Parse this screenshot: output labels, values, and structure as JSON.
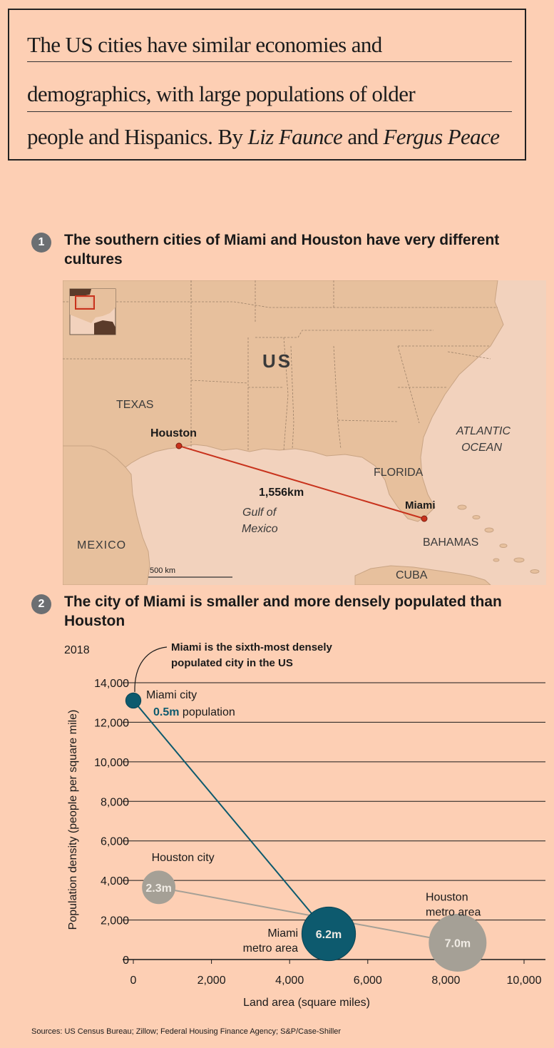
{
  "standfirst": {
    "line1": "The US cities have similar economies and",
    "line2": "demographics, with large populations of older",
    "line3_prefix": "people and Hispanics. By ",
    "author1": "Liz Faunce",
    "line3_mid": " and ",
    "author2": "Fergus Peace"
  },
  "section1": {
    "number": "1",
    "title": "The southern cities of Miami and Houston have very different cultures"
  },
  "map": {
    "labels": {
      "us": "US",
      "texas": "TEXAS",
      "houston": "Houston",
      "atlantic_line1": "ATLANTIC",
      "atlantic_line2": "OCEAN",
      "florida": "FLORIDA",
      "distance": "1,556km",
      "miami": "Miami",
      "gulf_line1": "Gulf of",
      "gulf_line2": "Mexico",
      "mexico": "MEXICO",
      "bahamas": "BAHAMAS",
      "cuba": "CUBA",
      "scale": "500 km"
    },
    "colors": {
      "land": "#e7c09d",
      "sea": "#f2d2bd",
      "route": "#c8321c"
    }
  },
  "section2": {
    "number": "2",
    "title": "The city of Miami is smaller and more densely populated than Houston"
  },
  "chart_data": {
    "type": "scatter",
    "subtitle": "2018",
    "xlabel": "Land area (square miles)",
    "ylabel": "Population density (people per square mile)",
    "xlim": [
      0,
      10000
    ],
    "ylim": [
      0,
      14000
    ],
    "x_ticks": [
      0,
      2000,
      4000,
      6000,
      8000,
      10000
    ],
    "x_tick_labels": [
      "0",
      "2,000",
      "4,000",
      "6,000",
      "8,000",
      "10,000"
    ],
    "y_ticks": [
      0,
      2000,
      4000,
      6000,
      8000,
      10000,
      12000,
      14000
    ],
    "y_tick_labels": [
      "0",
      "2,000",
      "4,000",
      "6,000",
      "8,000",
      "10,000",
      "12,000",
      "14,000"
    ],
    "grid": true,
    "annotation": "Miami is the sixth-most densely populated city in the US",
    "series": [
      {
        "name": "Miami",
        "color": "#0d5a6e",
        "points": [
          {
            "label": "Miami city",
            "x": 0,
            "y": 13100,
            "population": 0.5,
            "value_label": "0.5m",
            "value_suffix": " population"
          },
          {
            "label": "Miami metro area",
            "x": 5000,
            "y": 1300,
            "population": 6.2,
            "value_label": "6.2m"
          }
        ]
      },
      {
        "name": "Houston",
        "color": "#a5a096",
        "points": [
          {
            "label": "Houston city",
            "x": 650,
            "y": 3650,
            "population": 2.3,
            "value_label": "2.3m"
          },
          {
            "label": "Houston metro area",
            "x": 8300,
            "y": 850,
            "population": 7.0,
            "value_label": "7.0m"
          }
        ]
      }
    ]
  },
  "source": "Sources: US Census Bureau; Zillow; Federal Housing Finance Agency; S&P/Case-Shiller"
}
